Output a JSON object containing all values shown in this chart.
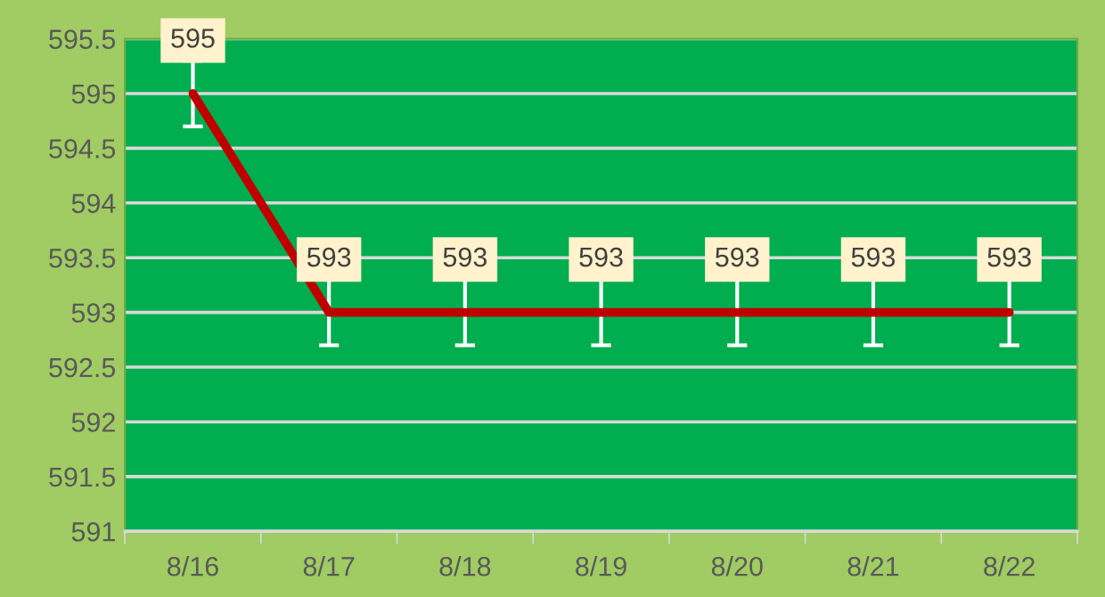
{
  "chart_data": {
    "type": "line",
    "categories": [
      "8/16",
      "8/17",
      "8/18",
      "8/19",
      "8/20",
      "8/21",
      "8/22"
    ],
    "series": [
      {
        "color": "#c00000",
        "values": [
          595,
          593,
          593,
          593,
          593,
          593,
          593
        ],
        "errors": [
          0.3,
          0.3,
          0.3,
          0.3,
          0.3,
          0.3,
          0.3
        ]
      }
    ],
    "ylim": [
      591,
      595.5
    ],
    "yticks": [
      591,
      591.5,
      592,
      592.5,
      593,
      593.5,
      594,
      594.5,
      595,
      595.5
    ],
    "grid": "y",
    "data_labels": true,
    "marker": "none",
    "line_style": "solid",
    "legend": false
  }
}
